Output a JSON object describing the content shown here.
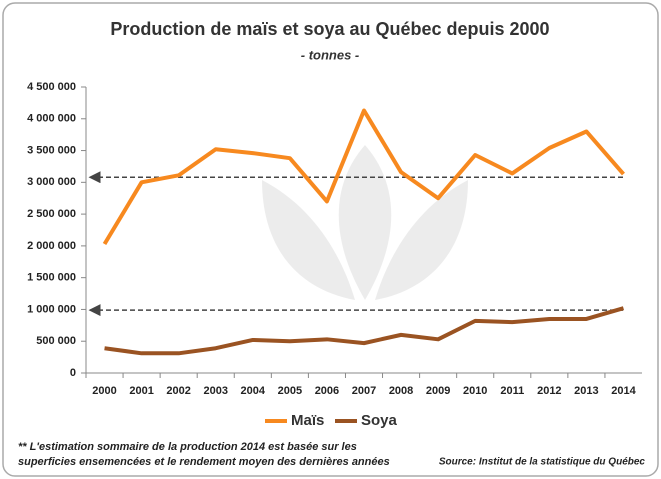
{
  "chart_data": {
    "type": "line",
    "title": "Production de maïs et soya au Québec depuis 2000",
    "subtitle": "- tonnes -",
    "categories": [
      "2000",
      "2001",
      "2002",
      "2003",
      "2004",
      "2005",
      "2006",
      "2007",
      "2008",
      "2009",
      "2010",
      "2011",
      "2012",
      "2013",
      "2014"
    ],
    "series": [
      {
        "name": "Maïs",
        "color": "#f7891f",
        "values": [
          2030000,
          3000000,
          3110000,
          3520000,
          3460000,
          3380000,
          2700000,
          4130000,
          3160000,
          2750000,
          3430000,
          3140000,
          3540000,
          3800000,
          3130000
        ]
      },
      {
        "name": "Soya",
        "color": "#9a5322",
        "values": [
          390000,
          310000,
          310000,
          390000,
          520000,
          500000,
          530000,
          470000,
          600000,
          530000,
          820000,
          800000,
          850000,
          850000,
          1020000
        ]
      }
    ],
    "reference_lines": [
      3080000,
      990000
    ],
    "ylim": [
      0,
      4500000
    ],
    "yticks": [
      {
        "value": 0,
        "label": "0"
      },
      {
        "value": 500000,
        "label": "500 000"
      },
      {
        "value": 1000000,
        "label": "1 000 000"
      },
      {
        "value": 1500000,
        "label": "1 500 000"
      },
      {
        "value": 2000000,
        "label": "2 000 000"
      },
      {
        "value": 2500000,
        "label": "2 500 000"
      },
      {
        "value": 3000000,
        "label": "3 000 000"
      },
      {
        "value": 3500000,
        "label": "3 500 000"
      },
      {
        "value": 4000000,
        "label": "4 000 000"
      },
      {
        "value": 4500000,
        "label": "4 500 000"
      }
    ],
    "footnote": [
      "** L'estimation sommaire de la production 2014 est basée sur les",
      "superficies ensemencées et le rendement moyen des dernières années"
    ],
    "source": "Source: Institut de la statistique du Québec"
  }
}
